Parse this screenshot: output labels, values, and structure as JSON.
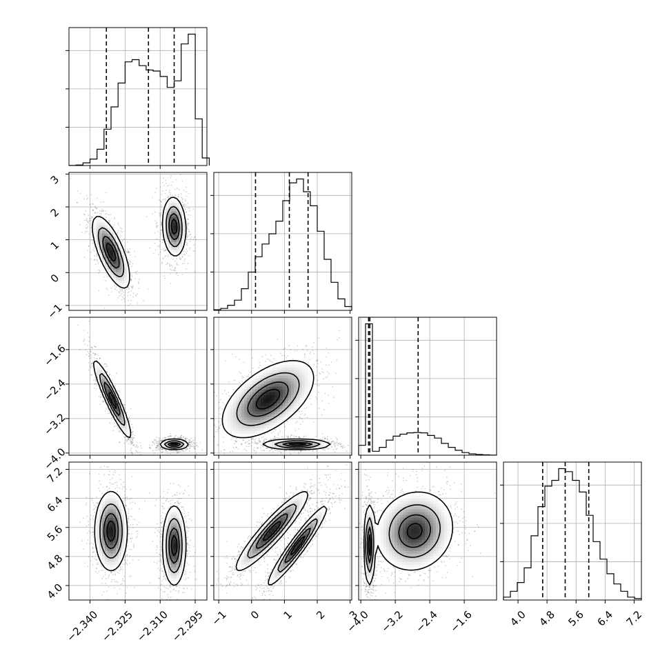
{
  "chart_data": {
    "type": "corner",
    "grid": true,
    "parameters": [
      {
        "range": [
          -2.349,
          -2.29
        ],
        "ticks": [
          -2.34,
          -2.325,
          -2.31,
          -2.295
        ],
        "tick_labels": [
          "−2.340",
          "−2.325",
          "−2.310",
          "−2.295"
        ]
      },
      {
        "range": [
          -1.15,
          3.05
        ],
        "ticks": [
          -1,
          0,
          1,
          2,
          3
        ],
        "tick_labels": [
          "−1",
          "0",
          "1",
          "2",
          "3"
        ]
      },
      {
        "range": [
          -4.05,
          -0.85
        ],
        "ticks": [
          -4.0,
          -3.2,
          -2.4,
          -1.6
        ],
        "tick_labels": [
          "−4.0",
          "−3.2",
          "−2.4",
          "−1.6"
        ]
      },
      {
        "range": [
          3.6,
          7.4
        ],
        "ticks": [
          4.0,
          4.8,
          5.6,
          6.4,
          7.2
        ],
        "tick_labels": [
          "4.0",
          "4.8",
          "5.6",
          "6.4",
          "7.2"
        ]
      }
    ],
    "histograms": [
      {
        "bins": [
          -2.349,
          -2.346,
          -2.343,
          -2.34,
          -2.337,
          -2.334,
          -2.331,
          -2.328,
          -2.325,
          -2.322,
          -2.319,
          -2.316,
          -2.313,
          -2.31,
          -2.307,
          -2.304,
          -2.301,
          -2.298,
          -2.295,
          -2.292,
          -2.289
        ],
        "counts": [
          1,
          5,
          25,
          60,
          150,
          335,
          540,
          760,
          955,
          975,
          920,
          880,
          870,
          820,
          720,
          780,
          1120,
          1210,
          430,
          70
        ],
        "quantiles": [
          -2.333,
          -2.315,
          -2.304
        ]
      },
      {
        "bins": [
          -1.15,
          -0.94,
          -0.73,
          -0.52,
          -0.31,
          -0.1,
          0.11,
          0.32,
          0.53,
          0.74,
          0.95,
          1.16,
          1.37,
          1.58,
          1.79,
          2.0,
          2.21,
          2.42,
          2.63,
          2.84,
          3.05
        ],
        "counts": [
          5,
          15,
          40,
          80,
          170,
          300,
          420,
          520,
          600,
          700,
          860,
          1000,
          1030,
          930,
          820,
          620,
          400,
          220,
          90,
          30
        ],
        "quantiles": [
          0.12,
          1.15,
          1.72
        ]
      },
      {
        "bins": [
          -4.05,
          -3.89,
          -3.73,
          -3.57,
          -3.41,
          -3.25,
          -3.09,
          -2.93,
          -2.77,
          -2.61,
          -2.45,
          -2.29,
          -2.13,
          -1.97,
          -1.81,
          -1.65,
          -1.49,
          -1.33,
          -1.17,
          -1.01,
          -0.85
        ],
        "counts": [
          150,
          2000,
          60,
          120,
          230,
          290,
          320,
          340,
          345,
          340,
          300,
          260,
          180,
          120,
          75,
          40,
          20,
          10,
          5,
          2
        ],
        "quantiles": [
          -3.82,
          -3.79,
          -2.67
        ]
      },
      {
        "bins": [
          3.6,
          3.79,
          3.98,
          4.17,
          4.36,
          4.55,
          4.74,
          4.93,
          5.12,
          5.31,
          5.5,
          5.69,
          5.88,
          6.07,
          6.26,
          6.45,
          6.64,
          6.83,
          7.02,
          7.21,
          7.4
        ],
        "counts": [
          10,
          30,
          60,
          110,
          220,
          320,
          390,
          410,
          450,
          440,
          410,
          370,
          290,
          200,
          140,
          90,
          55,
          30,
          10,
          5
        ],
        "quantiles": [
          4.68,
          5.3,
          5.95
        ]
      }
    ],
    "pairs": [
      {
        "x_param": 0,
        "y_param": 1,
        "modes": [
          {
            "center": [
              -2.331,
              0.62
            ],
            "sigma": [
              0.004,
              0.55
            ],
            "rho": -0.7,
            "weight": 0.5
          },
          {
            "center": [
              -2.304,
              1.4
            ],
            "sigma": [
              0.0025,
              0.45
            ],
            "rho": -0.1,
            "weight": 0.5
          }
        ]
      },
      {
        "x_param": 0,
        "y_param": 2,
        "modes": [
          {
            "center": [
              -2.3305,
              -2.75
            ],
            "sigma": [
              0.004,
              0.45
            ],
            "rho": -0.92,
            "weight": 0.5
          },
          {
            "center": [
              -2.304,
              -3.8
            ],
            "sigma": [
              0.003,
              0.06
            ],
            "rho": 0.0,
            "weight": 0.5
          }
        ]
      },
      {
        "x_param": 1,
        "y_param": 2,
        "modes": [
          {
            "center": [
              0.5,
              -2.75
            ],
            "sigma": [
              0.7,
              0.45
            ],
            "rho": 0.55,
            "weight": 0.5
          },
          {
            "center": [
              1.4,
              -3.8
            ],
            "sigma": [
              0.5,
              0.06
            ],
            "rho": 0.0,
            "weight": 0.5
          }
        ]
      },
      {
        "x_param": 0,
        "y_param": 3,
        "modes": [
          {
            "center": [
              -2.331,
              5.5
            ],
            "sigma": [
              0.0035,
              0.55
            ],
            "rho": 0.0,
            "weight": 0.5
          },
          {
            "center": [
              -2.304,
              5.1
            ],
            "sigma": [
              0.0025,
              0.55
            ],
            "rho": 0.0,
            "weight": 0.5
          }
        ]
      },
      {
        "x_param": 1,
        "y_param": 3,
        "modes": [
          {
            "center": [
              0.62,
              5.5
            ],
            "sigma": [
              0.55,
              0.55
            ],
            "rho": 0.92,
            "weight": 0.5
          },
          {
            "center": [
              1.4,
              5.1
            ],
            "sigma": [
              0.45,
              0.55
            ],
            "rho": 0.95,
            "weight": 0.5
          }
        ]
      },
      {
        "x_param": 2,
        "y_param": 3,
        "modes": [
          {
            "center": [
              -3.8,
              5.1
            ],
            "sigma": [
              0.06,
              0.55
            ],
            "rho": 0.0,
            "weight": 0.5
          },
          {
            "center": [
              -2.75,
              5.5
            ],
            "sigma": [
              0.45,
              0.55
            ],
            "rho": 0.1,
            "weight": 0.5
          }
        ]
      }
    ]
  }
}
